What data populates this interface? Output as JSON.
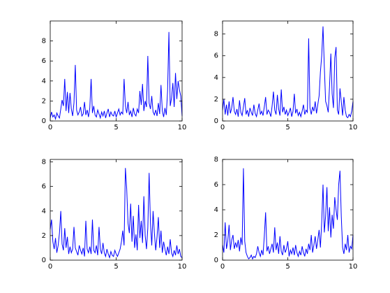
{
  "chart_data": [
    {
      "type": "line",
      "x": [
        0,
        0.1,
        0.2,
        0.3,
        0.4,
        0.5,
        0.6,
        0.7,
        0.8,
        0.9,
        1,
        1.1,
        1.2,
        1.3,
        1.4,
        1.5,
        1.6,
        1.7,
        1.8,
        1.9,
        2,
        2.1,
        2.2,
        2.3,
        2.4,
        2.5,
        2.6,
        2.7,
        2.8,
        2.9,
        3,
        3.1,
        3.2,
        3.3,
        3.4,
        3.5,
        3.6,
        3.7,
        3.8,
        3.9,
        4,
        4.1,
        4.2,
        4.3,
        4.4,
        4.5,
        4.6,
        4.7,
        4.8,
        4.9,
        5,
        5.1,
        5.2,
        5.3,
        5.4,
        5.5,
        5.6,
        5.7,
        5.8,
        5.9,
        6,
        6.1,
        6.2,
        6.3,
        6.4,
        6.5,
        6.6,
        6.7,
        6.8,
        6.9,
        7,
        7.1,
        7.2,
        7.3,
        7.4,
        7.5,
        7.6,
        7.7,
        7.8,
        7.9,
        8,
        8.1,
        8.2,
        8.3,
        8.4,
        8.5,
        8.6,
        8.7,
        8.8,
        8.9,
        9,
        9.1,
        9.2,
        9.3,
        9.4,
        9.5,
        9.6,
        9.7,
        9.8,
        9.9,
        10
      ],
      "series": [
        {
          "color": "#0000ff",
          "values": [
            0.3,
            0.9,
            0.4,
            0.6,
            0.2,
            0.8,
            0.5,
            0.3,
            1.2,
            2.1,
            1.5,
            4.2,
            1.0,
            2.9,
            0.8,
            2.8,
            1.2,
            0.5,
            1.8,
            5.6,
            1.1,
            0.6,
            0.9,
            1.4,
            0.5,
            0.7,
            1.9,
            0.6,
            1.1,
            0.4,
            1.3,
            4.2,
            0.8,
            1.5,
            0.6,
            0.4,
            1.1,
            0.7,
            0.3,
            0.9,
            0.5,
            1.0,
            0.3,
            0.8,
            1.2,
            0.4,
            0.9,
            0.6,
            0.5,
            1.0,
            0.4,
            0.8,
            1.2,
            0.6,
            0.9,
            0.7,
            4.2,
            1.5,
            0.8,
            1.9,
            0.6,
            1.0,
            0.4,
            1.3,
            0.7,
            0.5,
            1.2,
            0.8,
            3.0,
            1.6,
            3.7,
            1.0,
            2.0,
            1.4,
            6.5,
            1.8,
            1.2,
            2.5,
            0.9,
            0.6,
            1.1,
            0.5,
            1.8,
            0.7,
            3.6,
            1.0,
            0.4,
            1.3,
            0.6,
            3.0,
            8.9,
            1.5,
            2.3,
            3.8,
            1.4,
            4.8,
            2.2,
            4.0,
            3.1,
            2.5,
            0.5
          ]
        }
      ],
      "xlim": [
        0,
        10
      ],
      "ylim": [
        0,
        10
      ],
      "xticks": [
        0,
        5,
        10
      ],
      "yticks": [
        0,
        2,
        4,
        6,
        8
      ]
    },
    {
      "type": "line",
      "x": [
        0,
        0.1,
        0.2,
        0.3,
        0.4,
        0.5,
        0.6,
        0.7,
        0.8,
        0.9,
        1,
        1.1,
        1.2,
        1.3,
        1.4,
        1.5,
        1.6,
        1.7,
        1.8,
        1.9,
        2,
        2.1,
        2.2,
        2.3,
        2.4,
        2.5,
        2.6,
        2.7,
        2.8,
        2.9,
        3,
        3.1,
        3.2,
        3.3,
        3.4,
        3.5,
        3.6,
        3.7,
        3.8,
        3.9,
        4,
        4.1,
        4.2,
        4.3,
        4.4,
        4.5,
        4.6,
        4.7,
        4.8,
        4.9,
        5,
        5.1,
        5.2,
        5.3,
        5.4,
        5.5,
        5.6,
        5.7,
        5.8,
        5.9,
        6,
        6.1,
        6.2,
        6.3,
        6.4,
        6.5,
        6.6,
        6.7,
        6.8,
        6.9,
        7,
        7.1,
        7.2,
        7.3,
        7.4,
        7.5,
        7.6,
        7.7,
        7.8,
        7.9,
        8,
        8.1,
        8.2,
        8.3,
        8.4,
        8.5,
        8.6,
        8.7,
        8.8,
        8.9,
        9,
        9.1,
        9.2,
        9.3,
        9.4,
        9.5,
        9.6,
        9.7,
        9.8,
        9.9,
        10
      ],
      "series": [
        {
          "color": "#0000ff",
          "values": [
            1.0,
            2.0,
            0.6,
            1.5,
            0.5,
            1.8,
            0.7,
            1.2,
            2.2,
            0.9,
            0.6,
            1.1,
            0.4,
            1.9,
            0.8,
            0.5,
            1.3,
            2.1,
            0.6,
            1.0,
            0.4,
            1.2,
            0.8,
            0.5,
            1.5,
            0.7,
            0.4,
            1.0,
            1.6,
            0.6,
            0.9,
            0.5,
            1.3,
            2.2,
            0.6,
            1.0,
            0.8,
            0.4,
            1.4,
            2.7,
            1.0,
            0.6,
            2.4,
            1.1,
            0.5,
            2.9,
            0.8,
            1.3,
            0.6,
            1.0,
            0.5,
            0.8,
            1.2,
            0.4,
            0.9,
            2.5,
            0.7,
            1.1,
            0.5,
            0.8,
            0.4,
            0.9,
            1.5,
            0.6,
            1.0,
            0.8,
            7.6,
            1.2,
            0.6,
            1.3,
            0.9,
            1.8,
            0.7,
            1.5,
            2.3,
            4.5,
            6.0,
            8.7,
            5.0,
            1.8,
            1.4,
            0.8,
            3.2,
            6.2,
            2.5,
            1.2,
            5.8,
            6.8,
            1.0,
            0.6,
            3.0,
            1.8,
            0.5,
            2.2,
            1.0,
            0.4,
            0.3,
            0.6,
            0.4,
            0.9,
            1.8
          ]
        }
      ],
      "xlim": [
        0,
        10
      ],
      "ylim": [
        0,
        9.2
      ],
      "xticks": [
        0,
        5,
        10
      ],
      "yticks": [
        0,
        2,
        4,
        6,
        8
      ]
    },
    {
      "type": "line",
      "x": [
        0,
        0.1,
        0.2,
        0.3,
        0.4,
        0.5,
        0.6,
        0.7,
        0.8,
        0.9,
        1,
        1.1,
        1.2,
        1.3,
        1.4,
        1.5,
        1.6,
        1.7,
        1.8,
        1.9,
        2,
        2.1,
        2.2,
        2.3,
        2.4,
        2.5,
        2.6,
        2.7,
        2.8,
        2.9,
        3,
        3.1,
        3.2,
        3.3,
        3.4,
        3.5,
        3.6,
        3.7,
        3.8,
        3.9,
        4,
        4.1,
        4.2,
        4.3,
        4.4,
        4.5,
        4.6,
        4.7,
        4.8,
        4.9,
        5,
        5.1,
        5.2,
        5.3,
        5.4,
        5.5,
        5.6,
        5.7,
        5.8,
        5.9,
        6,
        6.1,
        6.2,
        6.3,
        6.4,
        6.5,
        6.6,
        6.7,
        6.8,
        6.9,
        7,
        7.1,
        7.2,
        7.3,
        7.4,
        7.5,
        7.6,
        7.7,
        7.8,
        7.9,
        8,
        8.1,
        8.2,
        8.3,
        8.4,
        8.5,
        8.6,
        8.7,
        8.8,
        8.9,
        9,
        9.1,
        9.2,
        9.3,
        9.4,
        9.5,
        9.6,
        9.7,
        9.8,
        9.9,
        10
      ],
      "series": [
        {
          "color": "#0000ff",
          "values": [
            2.5,
            3.3,
            1.5,
            0.9,
            1.8,
            0.6,
            1.2,
            2.2,
            4.0,
            1.3,
            0.8,
            2.6,
            1.0,
            1.9,
            0.5,
            1.1,
            0.6,
            0.9,
            2.7,
            1.0,
            0.7,
            0.4,
            1.2,
            0.8,
            0.5,
            1.0,
            0.3,
            3.2,
            0.9,
            0.6,
            1.1,
            0.5,
            3.3,
            0.8,
            0.6,
            1.2,
            0.4,
            2.7,
            0.9,
            0.5,
            1.4,
            0.6,
            0.3,
            0.9,
            0.5,
            0.2,
            0.7,
            0.4,
            0.3,
            0.8,
            0.5,
            0.3,
            0.6,
            0.9,
            1.5,
            2.4,
            1.2,
            7.5,
            5.8,
            3.0,
            2.2,
            4.6,
            1.5,
            3.6,
            1.0,
            2.1,
            0.8,
            4.5,
            1.8,
            3.2,
            1.4,
            5.2,
            2.0,
            0.9,
            2.6,
            7.1,
            3.0,
            1.2,
            4.0,
            2.2,
            0.8,
            1.9,
            3.5,
            1.0,
            2.4,
            0.6,
            1.5,
            0.9,
            0.4,
            1.1,
            0.5,
            1.7,
            0.6,
            0.3,
            0.8,
            0.4,
            1.2,
            0.5,
            0.9,
            0.3,
            0.2
          ]
        }
      ],
      "xlim": [
        0,
        10
      ],
      "ylim": [
        0,
        8.2
      ],
      "xticks": [
        0,
        5,
        10
      ],
      "yticks": [
        0,
        2,
        4,
        6,
        8
      ]
    },
    {
      "type": "line",
      "x": [
        0,
        0.1,
        0.2,
        0.3,
        0.4,
        0.5,
        0.6,
        0.7,
        0.8,
        0.9,
        1,
        1.1,
        1.2,
        1.3,
        1.4,
        1.5,
        1.6,
        1.7,
        1.8,
        1.9,
        2,
        2.1,
        2.2,
        2.3,
        2.4,
        2.5,
        2.6,
        2.7,
        2.8,
        2.9,
        3,
        3.1,
        3.2,
        3.3,
        3.4,
        3.5,
        3.6,
        3.7,
        3.8,
        3.9,
        4,
        4.1,
        4.2,
        4.3,
        4.4,
        4.5,
        4.6,
        4.7,
        4.8,
        4.9,
        5,
        5.1,
        5.2,
        5.3,
        5.4,
        5.5,
        5.6,
        5.7,
        5.8,
        5.9,
        6,
        6.1,
        6.2,
        6.3,
        6.4,
        6.5,
        6.6,
        6.7,
        6.8,
        6.9,
        7,
        7.1,
        7.2,
        7.3,
        7.4,
        7.5,
        7.6,
        7.7,
        7.8,
        7.9,
        8,
        8.1,
        8.2,
        8.3,
        8.4,
        8.5,
        8.6,
        8.7,
        8.8,
        8.9,
        9,
        9.1,
        9.2,
        9.3,
        9.4,
        9.5,
        9.6,
        9.7,
        9.8,
        9.9,
        10
      ],
      "series": [
        {
          "color": "#0000ff",
          "values": [
            1.2,
            0.6,
            3.0,
            0.9,
            1.5,
            2.8,
            0.8,
            1.6,
            2.0,
            0.9,
            1.4,
            1.0,
            1.6,
            0.7,
            1.8,
            1.2,
            7.3,
            1.5,
            0.6,
            0.3,
            0.1,
            0.2,
            0.4,
            0.1,
            0.3,
            0.2,
            0.5,
            1.1,
            0.6,
            0.3,
            0.8,
            0.4,
            1.9,
            3.8,
            0.7,
            1.1,
            0.5,
            0.9,
            1.3,
            0.6,
            2.6,
            0.8,
            1.4,
            0.5,
            1.9,
            0.7,
            0.4,
            1.2,
            0.6,
            0.9,
            1.5,
            0.3,
            0.8,
            0.5,
            1.0,
            0.4,
            1.2,
            0.6,
            0.3,
            0.7,
            0.4,
            1.1,
            0.6,
            0.3,
            0.9,
            0.5,
            1.3,
            0.8,
            2.0,
            0.6,
            1.2,
            1.9,
            0.9,
            1.6,
            2.4,
            1.0,
            3.0,
            6.0,
            2.2,
            3.5,
            5.8,
            2.3,
            4.2,
            1.8,
            3.6,
            2.5,
            5.0,
            4.0,
            3.2,
            6.0,
            7.1,
            3.5,
            1.0,
            0.5,
            1.3,
            0.8,
            2.0,
            0.6,
            1.1,
            0.9,
            2.0
          ]
        }
      ],
      "xlim": [
        0,
        10
      ],
      "ylim": [
        0,
        8
      ],
      "xticks": [
        0,
        5,
        10
      ],
      "yticks": [
        0,
        2,
        4,
        6,
        8
      ]
    }
  ]
}
